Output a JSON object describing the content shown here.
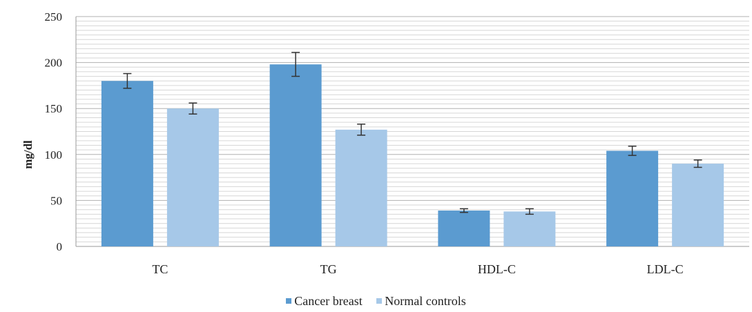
{
  "chart_data": {
    "type": "bar",
    "categories": [
      "TC",
      "TG",
      "HDL-C",
      "LDL-C"
    ],
    "series": [
      {
        "name": "Cancer breast",
        "values": [
          180,
          198,
          39,
          104
        ],
        "errors": [
          8,
          13,
          2,
          5
        ],
        "color": "#5b9bd0"
      },
      {
        "name": "Normal controls",
        "values": [
          150,
          127,
          38,
          90
        ],
        "errors": [
          6,
          6,
          3,
          4
        ],
        "color": "#a6c8e8"
      }
    ],
    "title": "",
    "xlabel": "",
    "ylabel": "mg/dl",
    "ylim": [
      0,
      250
    ],
    "yticks": [
      0,
      50,
      100,
      150,
      200,
      250
    ],
    "grid": true,
    "legend_position": "bottom"
  }
}
